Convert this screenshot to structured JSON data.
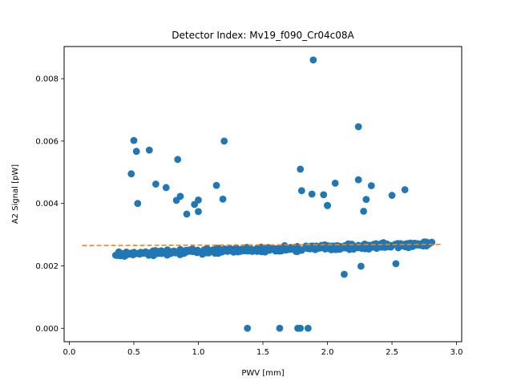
{
  "chart_data": {
    "type": "scatter",
    "title": "Detector Index: Mv19_f090_Cr04c08A",
    "xlabel": "PWV [mm]",
    "ylabel": "A2 Signal [pW]",
    "xlim": [
      -0.04,
      3.04
    ],
    "ylim": [
      -0.00043,
      0.00903
    ],
    "xticks": [
      0.0,
      0.5,
      1.0,
      1.5,
      2.0,
      2.5,
      3.0
    ],
    "xtick_labels": [
      "0.0",
      "0.5",
      "1.0",
      "1.5",
      "2.0",
      "2.5",
      "3.0"
    ],
    "yticks": [
      0.0,
      0.002,
      0.004,
      0.006,
      0.008
    ],
    "ytick_labels": [
      "0.000",
      "0.002",
      "0.004",
      "0.006",
      "0.008"
    ],
    "colors": {
      "points": "#1f77b4",
      "fit_line": "#ff7f0e"
    },
    "fit_line": {
      "x": [
        0.1,
        2.88
      ],
      "y": [
        0.00265,
        0.00269
      ],
      "style": "dashed"
    },
    "outliers": {
      "x": [
        1.89,
        0.5,
        0.52,
        0.62,
        0.48,
        0.53,
        0.84,
        0.67,
        0.75,
        0.83,
        0.86,
        0.91,
        0.97,
        1.0,
        1.14,
        1.2,
        1.19,
        1.0,
        1.79,
        1.8,
        1.88,
        1.97,
        2.06,
        2.24,
        2.24,
        2.34,
        2.3,
        2.28,
        2.5,
        2.6,
        2.0,
        2.0,
        2.26,
        2.13,
        2.53,
        1.38,
        1.63,
        1.77,
        1.79,
        1.85
      ],
      "y": [
        0.0086,
        0.00602,
        0.00567,
        0.00571,
        0.00495,
        0.004,
        0.00541,
        0.00462,
        0.00451,
        0.0041,
        0.00423,
        0.00366,
        0.00397,
        0.00411,
        0.00458,
        0.006,
        0.00414,
        0.00374,
        0.0051,
        0.00441,
        0.0043,
        0.00428,
        0.00465,
        0.00646,
        0.00476,
        0.00457,
        0.00413,
        0.00375,
        0.00426,
        0.00444,
        0.00393,
        0.00394,
        0.00199,
        0.00173,
        0.00207,
        0.0,
        0.0,
        0.0,
        0.0,
        0.0
      ]
    },
    "main_band": {
      "x_range": [
        0.35,
        2.82
      ],
      "trend_y": [
        0.00238,
        0.0027
      ],
      "spread": 0.00012,
      "count": 420,
      "note": "dense cluster of points along the fit line"
    }
  }
}
